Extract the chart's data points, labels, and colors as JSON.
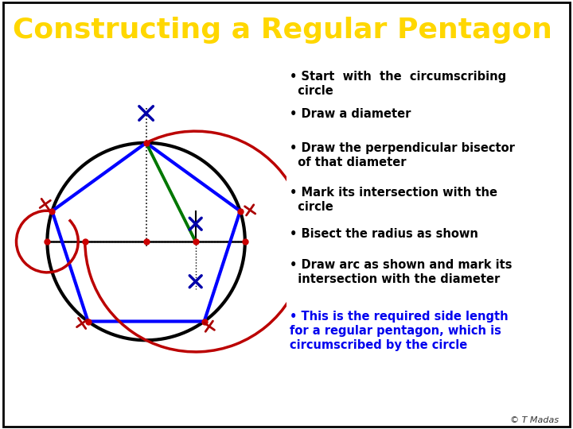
{
  "title": "Constructing a Regular Pentagon",
  "title_color": "#FFD700",
  "title_bg": "#0000CC",
  "bg_color": "#FFFFFF",
  "circle_color": "#000000",
  "circle_lw": 3.0,
  "pentagon_color": "#0000FF",
  "pentagon_lw": 3.0,
  "green_line_color": "#007700",
  "green_line_lw": 2.8,
  "red_arc_color": "#BB0000",
  "red_arc_lw": 2.5,
  "red_dot_color": "#CC0000",
  "red_dot_size": 5,
  "blue_cross_color": "#0000AA",
  "red_cross_color": "#AA0000",
  "bullet_items": [
    {
      "text": "Start  with  the  circumscribing\n  circle",
      "color": "#000000"
    },
    {
      "text": "Draw a diameter",
      "color": "#000000"
    },
    {
      "text": "Draw the perpendicular bisector\n  of that diameter",
      "color": "#000000"
    },
    {
      "text": "Mark its intersection with the\n  circle",
      "color": "#000000"
    },
    {
      "text": "Bisect the radius as shown",
      "color": "#000000"
    },
    {
      "text": "Draw arc as shown and mark its\n  intersection with the diameter",
      "color": "#000000"
    },
    {
      "text": "This is the required side length\nfor a regular pentagon, which is\ncircumscribed by the circle",
      "color": "#0000EE"
    }
  ],
  "footer": "© T Madas"
}
